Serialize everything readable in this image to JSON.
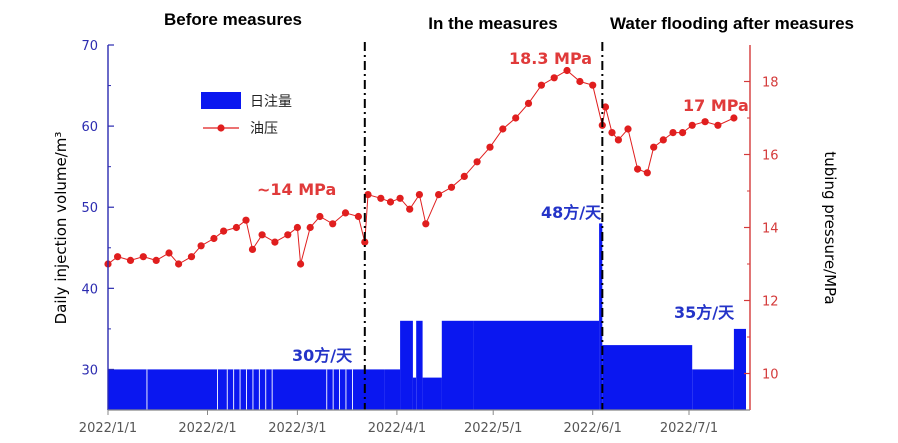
{
  "chart_data": {
    "type": "combo",
    "phase_labels": [
      "Before measures",
      "In the measures",
      "Water flooding after measures"
    ],
    "ylabel_left": "Daily injection volume/m³",
    "ylabel_right": "tubing pressure/MPa",
    "ylim_left": [
      25,
      70
    ],
    "yticks_left": [
      30,
      40,
      50,
      60,
      70
    ],
    "ylim_right": [
      9,
      19
    ],
    "yticks_right": [
      10,
      12,
      14,
      16,
      18
    ],
    "xlim": [
      "2022-01-01",
      "2022-07-20"
    ],
    "xticks": [
      "2022/1/1",
      "2022/2/1",
      "2022/3/1",
      "2022/4/1",
      "2022/5/1",
      "2022/6/1",
      "2022/7/1"
    ],
    "xtick_dates": [
      "2022-01-01",
      "2022-02-01",
      "2022-03-01",
      "2022-04-01",
      "2022-05-01",
      "2022-06-01",
      "2022-07-01"
    ],
    "divider_dates": [
      "2022-03-22",
      "2022-06-04"
    ],
    "legend": {
      "bar_label": "日注量",
      "line_label": "油压",
      "position": "upper-left"
    },
    "colors": {
      "bar": "#0a17f0",
      "line": "#e01e1e",
      "left_axis": "#2b2bb0",
      "right_axis": "#d43a3a"
    },
    "annotations": {
      "before_pressure": "~14 MPa",
      "peak_pressure": "18.3 MPa",
      "after_pressure": "17 MPa",
      "before_volume": "30方/天",
      "during_volume": "48方/天",
      "after_volume": "35方/天"
    },
    "series": [
      {
        "name": "日注量",
        "type": "bar",
        "axis": "left",
        "x": [
          "2022-01-01",
          "2022-03-28",
          "2022-04-02",
          "2022-04-06",
          "2022-04-07",
          "2022-04-09",
          "2022-04-15",
          "2022-04-25",
          "2022-06-03",
          "2022-06-04",
          "2022-07-02",
          "2022-07-15"
        ],
        "values": [
          30,
          30,
          36,
          29,
          36,
          29,
          36,
          36,
          48,
          33,
          30,
          35
        ],
        "notes": "step series: value holds from each date until the next"
      },
      {
        "name": "油压",
        "type": "line",
        "axis": "right",
        "x": [
          "2022-01-01",
          "2022-01-04",
          "2022-01-08",
          "2022-01-12",
          "2022-01-16",
          "2022-01-20",
          "2022-01-23",
          "2022-01-27",
          "2022-01-30",
          "2022-02-03",
          "2022-02-06",
          "2022-02-10",
          "2022-02-13",
          "2022-02-15",
          "2022-02-18",
          "2022-02-22",
          "2022-02-26",
          "2022-03-01",
          "2022-03-02",
          "2022-03-05",
          "2022-03-08",
          "2022-03-12",
          "2022-03-16",
          "2022-03-20",
          "2022-03-22",
          "2022-03-23",
          "2022-03-27",
          "2022-03-30",
          "2022-04-02",
          "2022-04-05",
          "2022-04-08",
          "2022-04-10",
          "2022-04-14",
          "2022-04-18",
          "2022-04-22",
          "2022-04-26",
          "2022-04-30",
          "2022-05-04",
          "2022-05-08",
          "2022-05-12",
          "2022-05-16",
          "2022-05-20",
          "2022-05-24",
          "2022-05-28",
          "2022-06-01",
          "2022-06-04",
          "2022-06-05",
          "2022-06-07",
          "2022-06-09",
          "2022-06-12",
          "2022-06-15",
          "2022-06-18",
          "2022-06-20",
          "2022-06-23",
          "2022-06-26",
          "2022-06-29",
          "2022-07-02",
          "2022-07-06",
          "2022-07-10",
          "2022-07-15"
        ],
        "values": [
          13.0,
          13.2,
          13.1,
          13.2,
          13.1,
          13.3,
          13.0,
          13.2,
          13.5,
          13.7,
          13.9,
          14.0,
          14.2,
          13.4,
          13.8,
          13.6,
          13.8,
          14.0,
          13.0,
          14.0,
          14.3,
          14.1,
          14.4,
          14.3,
          13.6,
          14.9,
          14.8,
          14.7,
          14.8,
          14.5,
          14.9,
          14.1,
          14.9,
          15.1,
          15.4,
          15.8,
          16.2,
          16.7,
          17.0,
          17.4,
          17.9,
          18.1,
          18.3,
          18.0,
          17.9,
          16.8,
          17.3,
          16.6,
          16.4,
          16.7,
          15.6,
          15.5,
          16.2,
          16.4,
          16.6,
          16.6,
          16.8,
          16.9,
          16.8,
          17.0
        ]
      }
    ]
  }
}
